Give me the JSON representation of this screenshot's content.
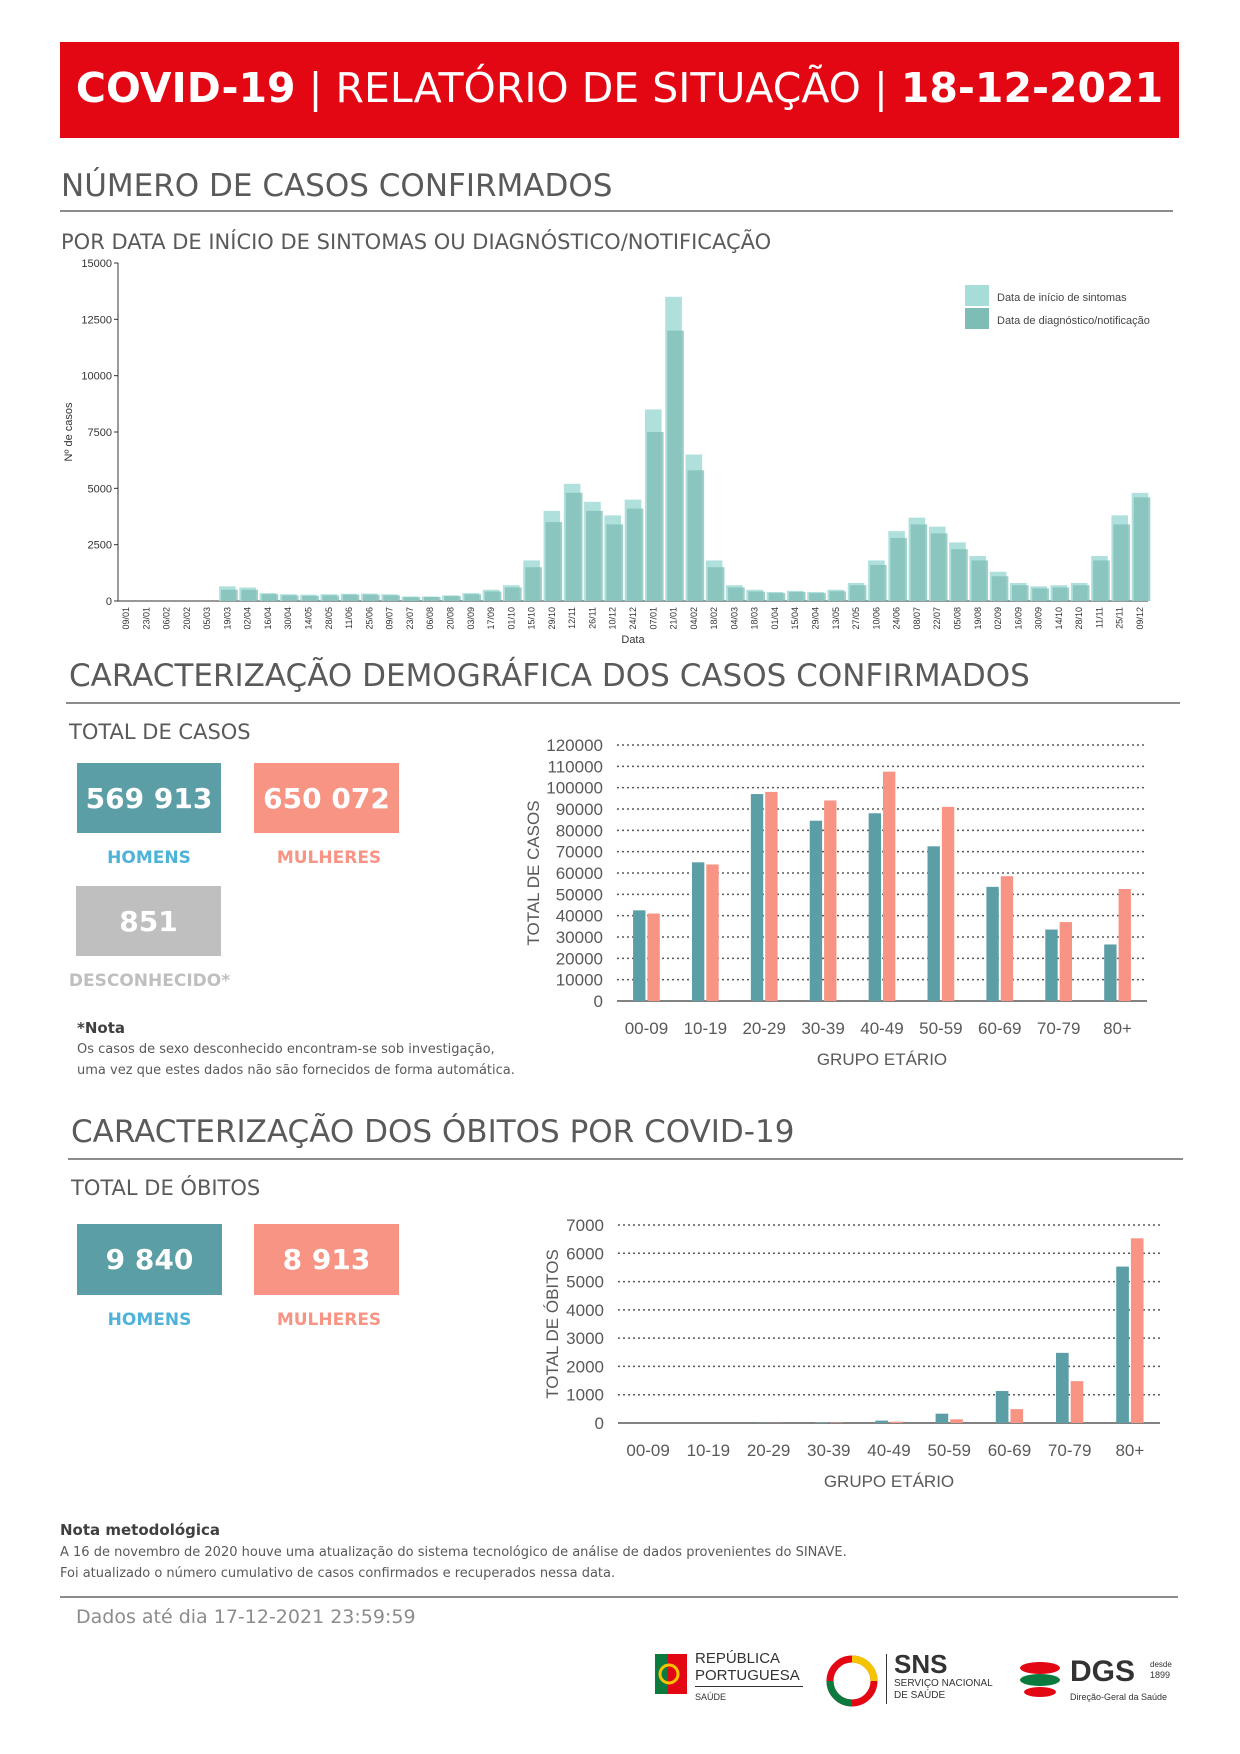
{
  "header": {
    "title_bold": "COVID-19",
    "title_sep": " | ",
    "title_main": "RELATÓRIO DE SITUAÇÃO",
    "title_sep2": " |  ",
    "date": "18-12-2021",
    "bg_color": "#e30613"
  },
  "section_cases": {
    "title": "NÚMERO DE CASOS CONFIRMADOS",
    "subtitle": "POR DATA DE INÍCIO DE SINTOMAS OU DIAGNÓSTICO/NOTIFICAÇÃO"
  },
  "section_demographics": {
    "title": "CARACTERIZAÇÃO DEMOGRÁFICA DOS CASOS CONFIRMADOS",
    "subtitle": "TOTAL DE CASOS",
    "men_value": "569 913",
    "men_label": "HOMENS",
    "women_value": "650 072",
    "women_label": "MULHERES",
    "unknown_value": "851",
    "unknown_label": "DESCONHECIDO*",
    "note_title": "*Nota",
    "note_line1": "Os casos de sexo desconhecido encontram-se sob investigação,",
    "note_line2": "uma vez que estes dados não são fornecidos de forma automática."
  },
  "section_deaths": {
    "title": "CARACTERIZAÇÃO DOS ÓBITOS POR COVID-19",
    "subtitle": "TOTAL DE ÓBITOS",
    "men_value": "9 840",
    "men_label": "HOMENS",
    "women_value": "8 913",
    "women_label": "MULHERES"
  },
  "methodology": {
    "title": "Nota metodológica",
    "line1": "A 16 de novembro de 2020 houve uma atualização do sistema tecnológico de análise de dados provenientes do SINAVE.",
    "line2": "Foi atualizado o número cumulativo de casos confirmados e recuperados nessa data."
  },
  "footer": {
    "data_until": "Dados até dia 17-12-2021 23:59:59",
    "logo_republica_1": "REPÚBLICA",
    "logo_republica_2": "PORTUGUESA",
    "logo_republica_3": "SAÚDE",
    "logo_sns_1": "SNS",
    "logo_sns_2": "SERVIÇO NACIONAL",
    "logo_sns_3": "DE SAÚDE",
    "logo_dgs_1": "DGS",
    "logo_dgs_2": "desde",
    "logo_dgs_3": "1899",
    "logo_dgs_4": "Direção-Geral da Saúde"
  },
  "colors": {
    "men": "#5b9ea6",
    "women": "#f79484",
    "unknown": "#bfbfbf",
    "symptoms": "#a6ddd8",
    "diagnosis": "#7dbdb6"
  },
  "chart_data": [
    {
      "type": "area",
      "xlabel": "Data",
      "ylabel": "Nº de casos",
      "ylim": [
        0,
        15000
      ],
      "yticks": [
        "0",
        "2500",
        "5000",
        "7500",
        "10000",
        "12500",
        "15000"
      ],
      "xticks": [
        "09/01",
        "23/01",
        "06/02",
        "20/02",
        "05/03",
        "19/03",
        "02/04",
        "16/04",
        "30/04",
        "14/05",
        "28/05",
        "11/06",
        "25/06",
        "09/07",
        "23/07",
        "06/08",
        "20/08",
        "03/09",
        "17/09",
        "01/10",
        "15/10",
        "29/10",
        "12/11",
        "26/11",
        "10/12",
        "24/12",
        "07/01",
        "21/01",
        "04/02",
        "18/02",
        "04/03",
        "18/03",
        "01/04",
        "15/04",
        "29/04",
        "13/05",
        "27/05",
        "10/06",
        "24/06",
        "08/07",
        "22/07",
        "05/08",
        "19/08",
        "02/09",
        "16/09",
        "30/09",
        "14/10",
        "28/10",
        "11/11",
        "25/11",
        "09/12"
      ],
      "legend_position": "top-right",
      "series": [
        {
          "name": "Data de início de sintomas",
          "color": "#a6ddd8",
          "values": [
            0,
            0,
            0,
            0,
            0,
            650,
            600,
            350,
            300,
            280,
            300,
            320,
            330,
            300,
            200,
            200,
            250,
            350,
            500,
            700,
            1800,
            4000,
            5200,
            4400,
            3800,
            4500,
            8500,
            13500,
            6500,
            1800,
            700,
            500,
            400,
            450,
            400,
            500,
            800,
            1800,
            3100,
            3700,
            3300,
            2600,
            2000,
            1300,
            800,
            650,
            700,
            800,
            2000,
            3800,
            4800
          ]
        },
        {
          "name": "Data de diagnóstico/notificação",
          "color": "#7dbdb6",
          "values": [
            0,
            0,
            0,
            0,
            0,
            500,
            500,
            300,
            250,
            230,
            250,
            280,
            280,
            250,
            170,
            180,
            220,
            300,
            420,
            600,
            1500,
            3500,
            4800,
            4000,
            3400,
            4100,
            7500,
            12000,
            5800,
            1500,
            600,
            420,
            350,
            400,
            350,
            430,
            700,
            1600,
            2800,
            3400,
            3000,
            2300,
            1800,
            1100,
            700,
            560,
            600,
            700,
            1800,
            3400,
            4600
          ]
        }
      ]
    },
    {
      "type": "bar",
      "title": "",
      "xlabel": "GRUPO ETÁRIO",
      "ylabel": "TOTAL DE CASOS",
      "ylim": [
        0,
        120000
      ],
      "yticks": [
        "0",
        "10000",
        "20000",
        "30000",
        "40000",
        "50000",
        "60000",
        "70000",
        "80000",
        "90000",
        "100000",
        "110000",
        "120000"
      ],
      "categories": [
        "00-09",
        "10-19",
        "20-29",
        "30-39",
        "40-49",
        "50-59",
        "60-69",
        "70-79",
        "80+"
      ],
      "series": [
        {
          "name": "Homens",
          "color": "#5b9ea6",
          "values": [
            42500,
            65000,
            97000,
            84500,
            88000,
            72500,
            53500,
            33500,
            26500
          ]
        },
        {
          "name": "Mulheres",
          "color": "#f79484",
          "values": [
            41000,
            64000,
            98000,
            94000,
            107500,
            91000,
            58500,
            37000,
            52500
          ]
        }
      ]
    },
    {
      "type": "bar",
      "title": "",
      "xlabel": "GRUPO ETÁRIO",
      "ylabel": "TOTAL DE ÓBITOS",
      "ylim": [
        0,
        7000
      ],
      "yticks": [
        "0",
        "1000",
        "2000",
        "3000",
        "4000",
        "5000",
        "6000",
        "7000"
      ],
      "categories": [
        "00-09",
        "10-19",
        "20-29",
        "30-39",
        "40-49",
        "50-59",
        "60-69",
        "70-79",
        "80+"
      ],
      "series": [
        {
          "name": "Homens",
          "color": "#5b9ea6",
          "values": [
            2,
            3,
            6,
            20,
            85,
            330,
            1130,
            2480,
            5530
          ]
        },
        {
          "name": "Mulheres",
          "color": "#f79484",
          "values": [
            1,
            2,
            4,
            12,
            45,
            130,
            490,
            1480,
            6530
          ]
        }
      ]
    }
  ]
}
